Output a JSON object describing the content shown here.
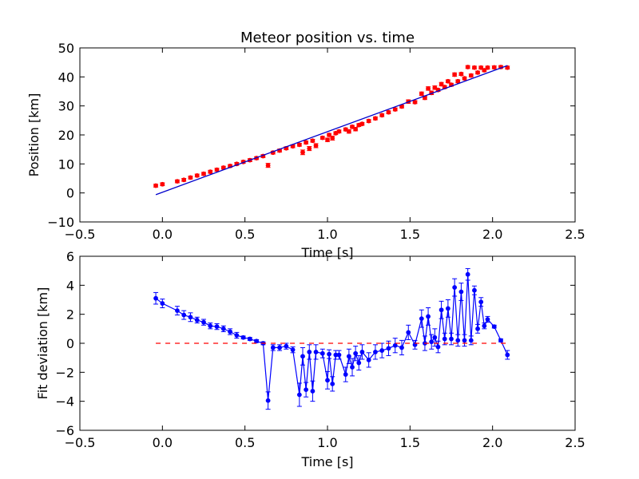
{
  "chart_data": [
    {
      "type": "scatter",
      "title": "Meteor position vs. time",
      "xlabel": "Time [s]",
      "ylabel": "Position [km]",
      "xlim": [
        -0.5,
        2.5
      ],
      "ylim": [
        -10,
        50
      ],
      "xticks": [
        "−0.5",
        "0.0",
        "0.5",
        "1.0",
        "1.5",
        "2.0",
        "2.5"
      ],
      "yticks": [
        "−10",
        "0",
        "10",
        "20",
        "30",
        "40",
        "50"
      ],
      "grid": false,
      "series": [
        {
          "kind": "errorbar-points",
          "color": "#ff0000",
          "x": [
            -0.04,
            0.0,
            0.09,
            0.13,
            0.17,
            0.21,
            0.25,
            0.29,
            0.33,
            0.37,
            0.41,
            0.45,
            0.49,
            0.53,
            0.57,
            0.61,
            0.64,
            0.67,
            0.71,
            0.75,
            0.79,
            0.83,
            0.85,
            0.87,
            0.89,
            0.91,
            0.93,
            0.97,
            1.0,
            1.01,
            1.03,
            1.05,
            1.07,
            1.11,
            1.13,
            1.15,
            1.17,
            1.19,
            1.21,
            1.25,
            1.29,
            1.33,
            1.37,
            1.41,
            1.45,
            1.49,
            1.53,
            1.57,
            1.59,
            1.61,
            1.63,
            1.65,
            1.67,
            1.69,
            1.71,
            1.73,
            1.75,
            1.77,
            1.79,
            1.81,
            1.83,
            1.85,
            1.87,
            1.89,
            1.91,
            1.93,
            1.95,
            1.97,
            2.01,
            2.05,
            2.09
          ],
          "y": [
            2.5,
            3.0,
            4.0,
            4.5,
            5.3,
            6.0,
            6.6,
            7.3,
            8.0,
            8.7,
            9.3,
            10.0,
            10.7,
            11.3,
            12.0,
            12.7,
            9.5,
            13.9,
            14.6,
            15.4,
            16.1,
            16.6,
            14.0,
            17.4,
            15.3,
            18.0,
            16.3,
            19.0,
            18.3,
            20.0,
            18.9,
            20.6,
            21.2,
            21.9,
            21.2,
            22.8,
            22.0,
            23.4,
            23.8,
            24.8,
            25.7,
            26.8,
            27.8,
            28.8,
            29.8,
            31.5,
            31.3,
            34.2,
            32.8,
            36.0,
            34.5,
            36.3,
            35.5,
            37.5,
            36.5,
            38.5,
            37.3,
            40.8,
            38.5,
            41.0,
            39.5,
            43.4,
            40.5,
            43.2,
            41.5,
            43.2,
            42.3,
            43.2,
            43.3,
            43.4,
            43.2
          ],
          "yerr": [
            0.5,
            0.5,
            0.5,
            0.5,
            0.5,
            0.5,
            0.5,
            0.5,
            0.5,
            0.5,
            0.5,
            0.5,
            0.5,
            0.5,
            0.5,
            0.5,
            0.7,
            0.5,
            0.5,
            0.5,
            0.5,
            0.5,
            0.8,
            0.5,
            0.7,
            0.5,
            0.7,
            0.5,
            0.6,
            0.5,
            0.7,
            0.5,
            0.5,
            0.5,
            0.6,
            0.5,
            0.6,
            0.5,
            0.5,
            0.5,
            0.5,
            0.5,
            0.5,
            0.5,
            0.5,
            0.6,
            0.5,
            0.6,
            0.6,
            0.6,
            0.6,
            0.6,
            0.5,
            0.6,
            0.5,
            0.5,
            0.5,
            0.6,
            0.5,
            0.5,
            0.5,
            0.5,
            0.5,
            0.5,
            0.5,
            0.5,
            0.5,
            0.5,
            0.5,
            0.5,
            0.5
          ]
        },
        {
          "kind": "fit-line",
          "color": "#0000cc",
          "x": [
            -0.04,
            2.09
          ],
          "y": [
            -0.6,
            43.9
          ]
        }
      ]
    },
    {
      "type": "line",
      "title": "",
      "xlabel": "Time [s]",
      "ylabel": "Fit deviation [km]",
      "xlim": [
        -0.5,
        2.5
      ],
      "ylim": [
        -6,
        6
      ],
      "xticks": [
        "−0.5",
        "0.0",
        "0.5",
        "1.0",
        "1.5",
        "2.0",
        "2.5"
      ],
      "yticks": [
        "−6",
        "−4",
        "−2",
        "0",
        "2",
        "4",
        "6"
      ],
      "grid": false,
      "series": [
        {
          "kind": "errorbar-line",
          "color": "#0000ff",
          "x": [
            -0.04,
            0.0,
            0.09,
            0.13,
            0.17,
            0.21,
            0.25,
            0.29,
            0.33,
            0.37,
            0.41,
            0.45,
            0.49,
            0.53,
            0.57,
            0.61,
            0.64,
            0.67,
            0.71,
            0.75,
            0.79,
            0.83,
            0.85,
            0.87,
            0.89,
            0.91,
            0.93,
            0.97,
            1.0,
            1.01,
            1.03,
            1.05,
            1.07,
            1.11,
            1.13,
            1.15,
            1.17,
            1.19,
            1.21,
            1.25,
            1.29,
            1.33,
            1.37,
            1.41,
            1.45,
            1.49,
            1.53,
            1.57,
            1.59,
            1.61,
            1.63,
            1.65,
            1.67,
            1.69,
            1.71,
            1.73,
            1.75,
            1.77,
            1.79,
            1.81,
            1.83,
            1.85,
            1.87,
            1.89,
            1.91,
            1.93,
            1.95,
            1.97,
            2.01,
            2.05,
            2.09
          ],
          "y": [
            3.1,
            2.75,
            2.25,
            1.95,
            1.8,
            1.6,
            1.45,
            1.2,
            1.15,
            1.0,
            0.8,
            0.55,
            0.4,
            0.3,
            0.15,
            0.0,
            -3.95,
            -0.3,
            -0.3,
            -0.2,
            -0.45,
            -3.55,
            -0.9,
            -3.2,
            -0.6,
            -3.3,
            -0.6,
            -0.7,
            -2.55,
            -0.75,
            -2.8,
            -0.8,
            -0.8,
            -2.15,
            -0.9,
            -1.65,
            -0.7,
            -1.35,
            -0.6,
            -1.15,
            -0.6,
            -0.5,
            -0.35,
            -0.15,
            -0.3,
            0.75,
            -0.1,
            1.7,
            0.0,
            1.85,
            0.1,
            0.4,
            -0.25,
            2.3,
            0.3,
            2.4,
            0.3,
            3.85,
            0.2,
            3.55,
            0.2,
            4.75,
            0.2,
            3.65,
            1.0,
            2.85,
            1.2,
            1.65,
            1.15,
            0.2,
            -0.8
          ],
          "yerr": [
            0.4,
            0.3,
            0.3,
            0.3,
            0.3,
            0.2,
            0.2,
            0.2,
            0.2,
            0.2,
            0.2,
            0.2,
            0.1,
            0.1,
            0.1,
            0.1,
            0.6,
            0.2,
            0.2,
            0.2,
            0.2,
            0.8,
            0.6,
            0.5,
            0.5,
            0.7,
            0.5,
            0.3,
            0.6,
            0.3,
            0.5,
            0.3,
            0.3,
            0.5,
            0.5,
            0.6,
            0.5,
            0.5,
            0.5,
            0.5,
            0.5,
            0.5,
            0.5,
            0.5,
            0.5,
            0.5,
            0.3,
            0.6,
            0.5,
            0.6,
            0.5,
            0.6,
            0.4,
            0.6,
            0.4,
            0.6,
            0.4,
            0.6,
            0.4,
            0.6,
            0.4,
            0.4,
            0.3,
            0.3,
            0.3,
            0.3,
            0.2,
            0.2,
            0.1,
            0.1,
            0.3
          ]
        },
        {
          "kind": "zero-line",
          "color": "#ff0000",
          "dashed": true,
          "x": [
            -0.04,
            2.09
          ],
          "y": [
            0,
            0
          ]
        }
      ]
    }
  ]
}
